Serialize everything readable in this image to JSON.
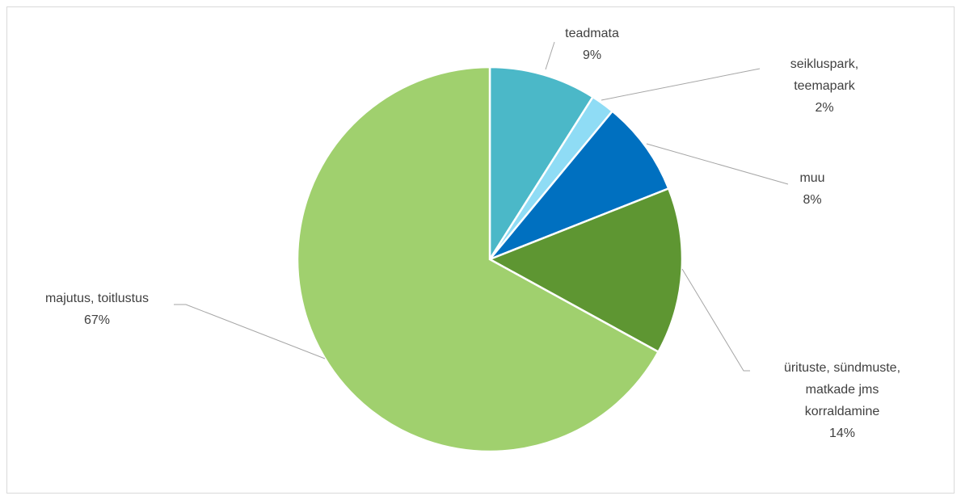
{
  "chart_data": {
    "type": "pie",
    "categories": [
      "teadmata",
      "seikluspark, teemapark",
      "muu",
      "ürituste, sündmuste, matkade jms korraldamine",
      "majutus, toitlustus"
    ],
    "values": [
      9,
      2,
      8,
      14,
      67
    ],
    "value_labels": [
      "9%",
      "2%",
      "8%",
      "14%",
      "67%"
    ],
    "colors": [
      "#4bb8c8",
      "#8fdcf5",
      "#0070c0",
      "#5e9632",
      "#a0d06e"
    ]
  }
}
